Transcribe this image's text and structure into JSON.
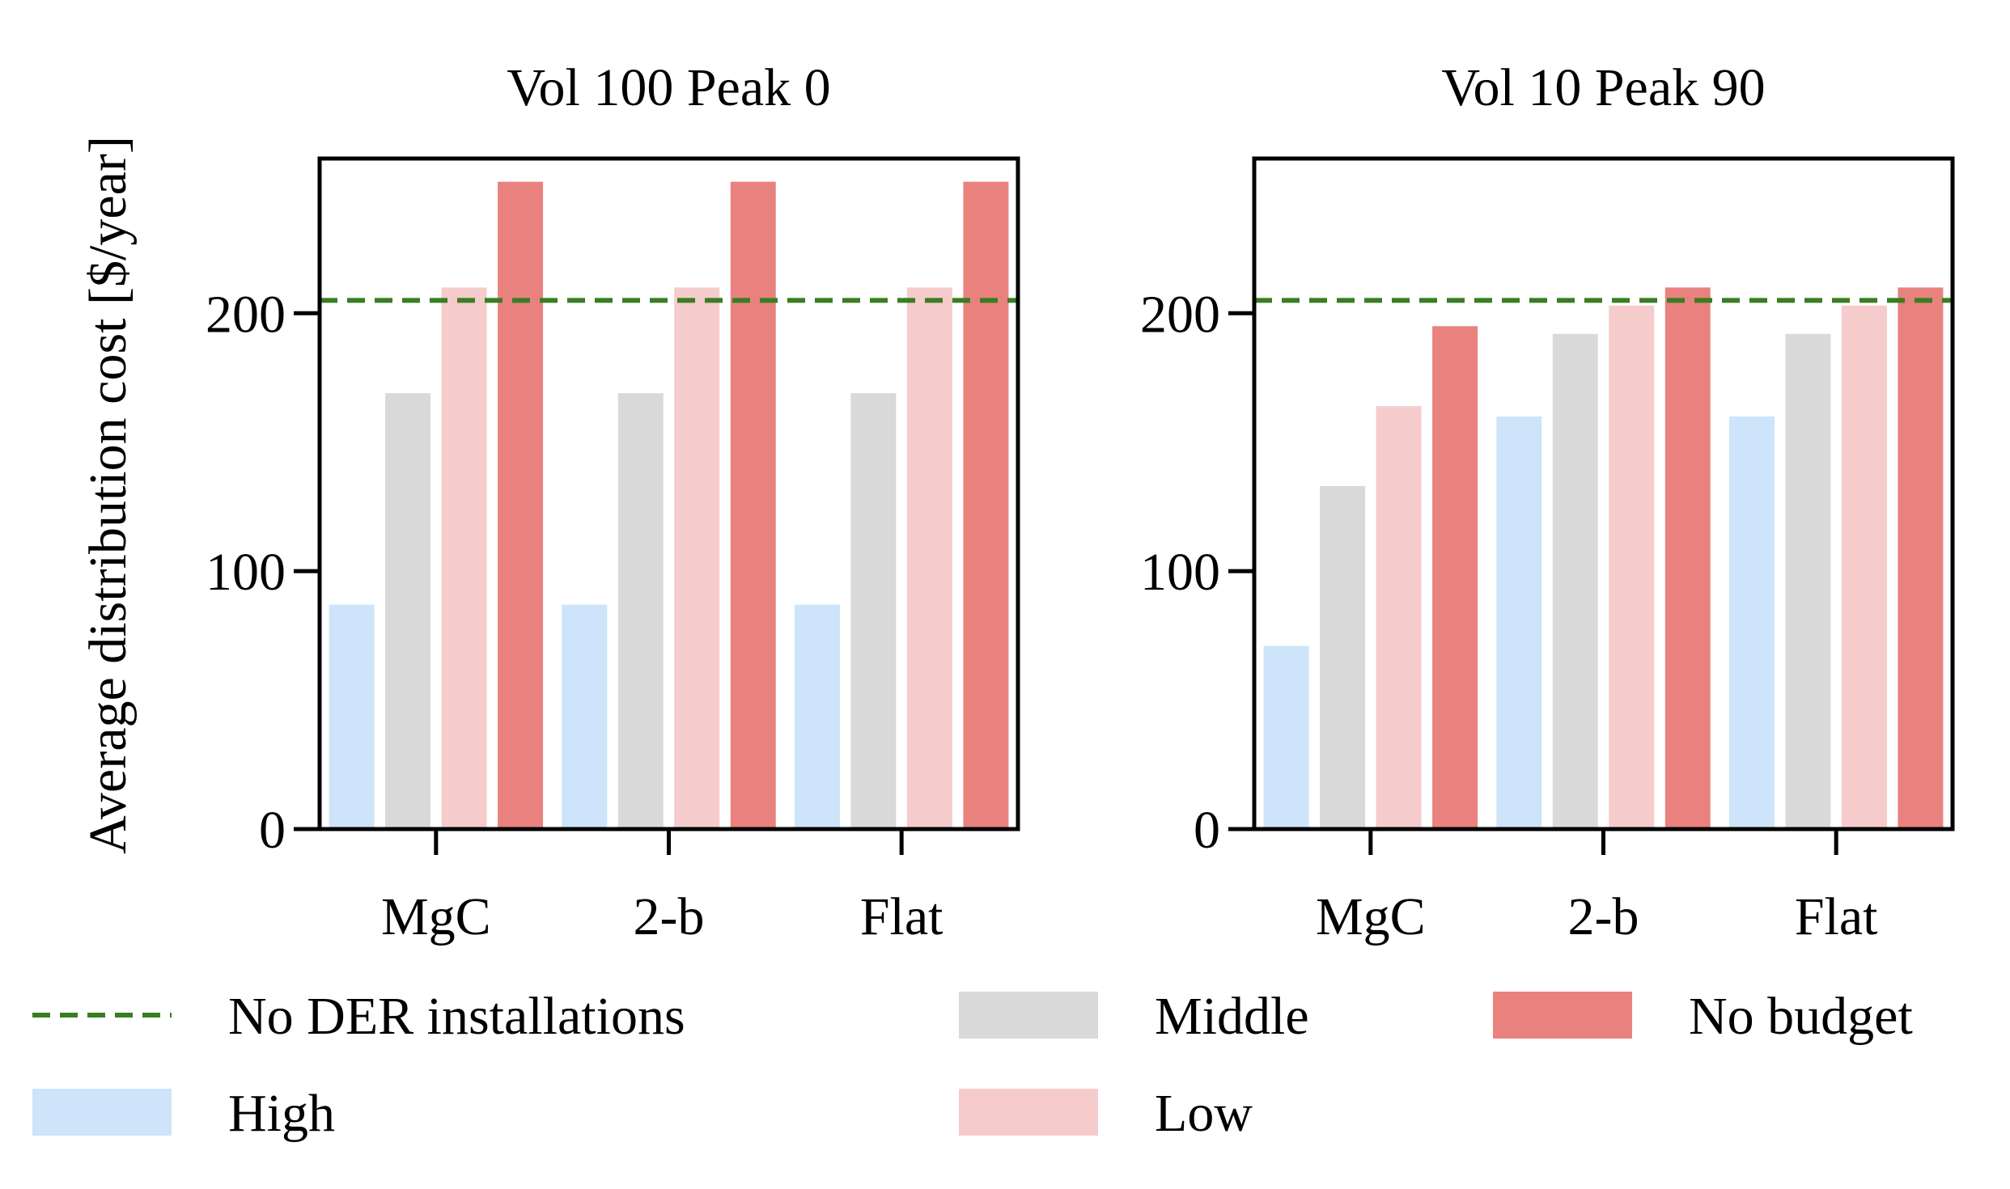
{
  "figure": {
    "ylabel": "Average distribution cost [$/year]"
  },
  "chart_data": [
    {
      "type": "bar",
      "title": "Vol 100 Peak 0",
      "categories": [
        "MgC",
        "2-b",
        "Flat"
      ],
      "series": [
        {
          "name": "High",
          "values": [
            87,
            87,
            87
          ]
        },
        {
          "name": "Middle",
          "values": [
            169,
            169,
            169
          ]
        },
        {
          "name": "Low",
          "values": [
            210,
            210,
            210
          ]
        },
        {
          "name": "No budget",
          "values": [
            251,
            251,
            251
          ]
        }
      ],
      "reference_line": {
        "name": "No DER installations",
        "value": 205
      },
      "ylim": [
        0,
        260
      ],
      "yticks": [
        0,
        100,
        200
      ],
      "xlabel": "",
      "ylabel": "Average distribution cost [$/year]",
      "grid": false
    },
    {
      "type": "bar",
      "title": "Vol 10 Peak 90",
      "categories": [
        "MgC",
        "2-b",
        "Flat"
      ],
      "series": [
        {
          "name": "High",
          "values": [
            71,
            160,
            160
          ]
        },
        {
          "name": "Middle",
          "values": [
            133,
            192,
            192
          ]
        },
        {
          "name": "Low",
          "values": [
            164,
            203,
            203
          ]
        },
        {
          "name": "No budget",
          "values": [
            195,
            210,
            210
          ]
        }
      ],
      "reference_line": {
        "name": "No DER installations",
        "value": 205
      },
      "ylim": [
        0,
        260
      ],
      "yticks": [
        0,
        100,
        200
      ],
      "xlabel": "",
      "ylabel": "",
      "grid": false
    }
  ],
  "legend": {
    "placement": "bottom",
    "entries": [
      {
        "label": "No DER installations",
        "kind": "dashed-line",
        "color": "#3a7d22"
      },
      {
        "label": "High",
        "kind": "patch",
        "color": "#cde4fa"
      },
      {
        "label": "Middle",
        "kind": "patch",
        "color": "#d9d9d9"
      },
      {
        "label": "Low",
        "kind": "patch",
        "color": "#f6cbcc"
      },
      {
        "label": "No budget",
        "kind": "patch",
        "color": "#e9827f"
      }
    ]
  },
  "colors": {
    "High": "#cde4fa",
    "Middle": "#d9d9d9",
    "Low": "#f6cbcc",
    "No budget": "#e9827f",
    "reference": "#3a7d22"
  }
}
